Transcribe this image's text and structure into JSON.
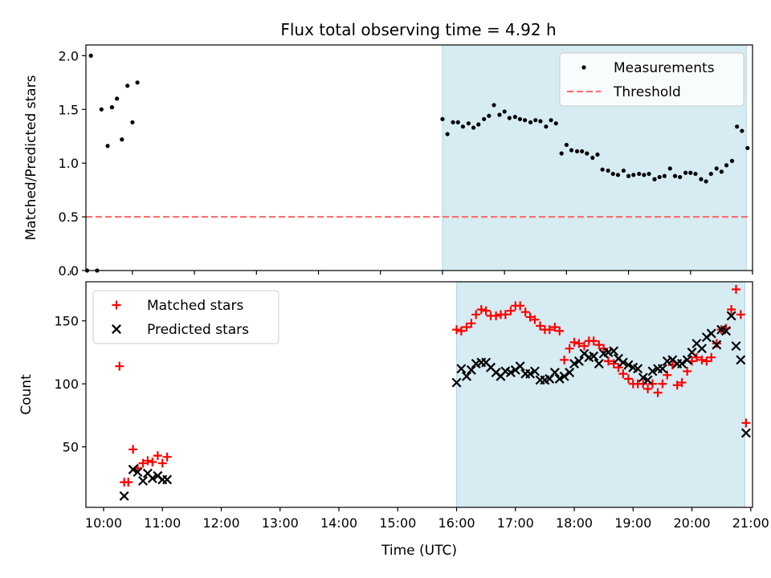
{
  "title": "Flux total observing time = 4.92 h",
  "chart_data": [
    {
      "type": "scatter",
      "ylabel": "Matched/Predicted stars",
      "xlim": [
        10.25,
        21.0
      ],
      "ylim": [
        0,
        2.1
      ],
      "yticks": [
        0.0,
        0.5,
        1.0,
        1.5,
        2.0
      ],
      "ytick_labels": [
        "0.0",
        "0.5",
        "1.0",
        "1.5",
        "2.0"
      ],
      "xtick_labels_visible": false,
      "shaded_region": [
        16.0,
        20.9
      ],
      "legend": {
        "position": "top-right",
        "entries": [
          "Measurements",
          "Threshold"
        ]
      },
      "series": [
        {
          "name": "Measurements",
          "color": "#000000",
          "marker": "dot",
          "points": [
            [
              10.27,
              0.0
            ],
            [
              10.33,
              2.0
            ],
            [
              10.43,
              0.0
            ],
            [
              10.5,
              1.5
            ],
            [
              10.6,
              1.16
            ],
            [
              10.67,
              1.52
            ],
            [
              10.75,
              1.6
            ],
            [
              10.83,
              1.22
            ],
            [
              10.92,
              1.72
            ],
            [
              11.0,
              1.38
            ],
            [
              11.08,
              1.75
            ],
            [
              16.0,
              1.41
            ],
            [
              16.08,
              1.27
            ],
            [
              16.17,
              1.38
            ],
            [
              16.25,
              1.38
            ],
            [
              16.33,
              1.34
            ],
            [
              16.42,
              1.37
            ],
            [
              16.5,
              1.33
            ],
            [
              16.58,
              1.36
            ],
            [
              16.67,
              1.41
            ],
            [
              16.75,
              1.44
            ],
            [
              16.83,
              1.54
            ],
            [
              16.92,
              1.45
            ],
            [
              17.0,
              1.48
            ],
            [
              17.08,
              1.42
            ],
            [
              17.17,
              1.43
            ],
            [
              17.25,
              1.41
            ],
            [
              17.33,
              1.4
            ],
            [
              17.42,
              1.38
            ],
            [
              17.5,
              1.4
            ],
            [
              17.58,
              1.39
            ],
            [
              17.67,
              1.34
            ],
            [
              17.75,
              1.4
            ],
            [
              17.83,
              1.37
            ],
            [
              17.92,
              1.09
            ],
            [
              18.0,
              1.17
            ],
            [
              18.08,
              1.12
            ],
            [
              18.17,
              1.11
            ],
            [
              18.25,
              1.11
            ],
            [
              18.33,
              1.09
            ],
            [
              18.42,
              1.05
            ],
            [
              18.5,
              1.08
            ],
            [
              18.58,
              0.94
            ],
            [
              18.67,
              0.93
            ],
            [
              18.75,
              0.9
            ],
            [
              18.83,
              0.89
            ],
            [
              18.92,
              0.93
            ],
            [
              19.0,
              0.88
            ],
            [
              19.08,
              0.89
            ],
            [
              19.17,
              0.9
            ],
            [
              19.25,
              0.89
            ],
            [
              19.33,
              0.9
            ],
            [
              19.42,
              0.85
            ],
            [
              19.5,
              0.87
            ],
            [
              19.58,
              0.88
            ],
            [
              19.67,
              0.95
            ],
            [
              19.75,
              0.88
            ],
            [
              19.83,
              0.87
            ],
            [
              19.92,
              0.91
            ],
            [
              20.0,
              0.91
            ],
            [
              20.08,
              0.9
            ],
            [
              20.17,
              0.85
            ],
            [
              20.25,
              0.83
            ],
            [
              20.33,
              0.9
            ],
            [
              20.42,
              0.95
            ],
            [
              20.5,
              0.92
            ],
            [
              20.58,
              0.98
            ],
            [
              20.67,
              1.02
            ],
            [
              20.75,
              1.34
            ],
            [
              20.83,
              1.3
            ],
            [
              20.92,
              1.14
            ]
          ]
        },
        {
          "name": "Threshold",
          "color": "#ff7070",
          "line": "dashed",
          "points": [
            [
              10.25,
              0.5
            ],
            [
              20.92,
              0.5
            ]
          ]
        }
      ]
    },
    {
      "type": "scatter",
      "xlabel": "Time (UTC)",
      "ylabel": "Count",
      "xlim": [
        9.7,
        21.03
      ],
      "ylim": [
        2,
        181
      ],
      "yticks": [
        50,
        100,
        150
      ],
      "ytick_labels": [
        "50",
        "100",
        "150"
      ],
      "xticks": [
        10,
        11,
        12,
        13,
        14,
        15,
        16,
        17,
        18,
        19,
        20,
        21
      ],
      "xtick_labels": [
        "10:00",
        "11:00",
        "12:00",
        "13:00",
        "14:00",
        "15:00",
        "16:00",
        "17:00",
        "18:00",
        "19:00",
        "20:00",
        "21:00"
      ],
      "shaded_region": [
        16.0,
        20.9
      ],
      "legend": {
        "position": "top-left",
        "entries": [
          "Matched stars",
          "Predicted stars"
        ]
      },
      "series": [
        {
          "name": "Matched stars",
          "color": "#ff0000",
          "marker": "plus",
          "points": [
            [
              10.27,
              114
            ],
            [
              10.35,
              22
            ],
            [
              10.42,
              22
            ],
            [
              10.5,
              48
            ],
            [
              10.58,
              33
            ],
            [
              10.67,
              37
            ],
            [
              10.75,
              39
            ],
            [
              10.83,
              38
            ],
            [
              10.92,
              43
            ],
            [
              11.0,
              37
            ],
            [
              11.08,
              42
            ],
            [
              16.0,
              143
            ],
            [
              16.08,
              142
            ],
            [
              16.17,
              145
            ],
            [
              16.25,
              148
            ],
            [
              16.33,
              155
            ],
            [
              16.42,
              159
            ],
            [
              16.5,
              158
            ],
            [
              16.58,
              154
            ],
            [
              16.67,
              154
            ],
            [
              16.75,
              155
            ],
            [
              16.83,
              155
            ],
            [
              16.92,
              158
            ],
            [
              17.0,
              162
            ],
            [
              17.08,
              162
            ],
            [
              17.17,
              157
            ],
            [
              17.25,
              153
            ],
            [
              17.33,
              151
            ],
            [
              17.42,
              146
            ],
            [
              17.5,
              143
            ],
            [
              17.58,
              143
            ],
            [
              17.67,
              145
            ],
            [
              17.75,
              142
            ],
            [
              17.83,
              119
            ],
            [
              17.92,
              128
            ],
            [
              18.0,
              133
            ],
            [
              18.08,
              132
            ],
            [
              18.17,
              130
            ],
            [
              18.25,
              134
            ],
            [
              18.33,
              134
            ],
            [
              18.42,
              131
            ],
            [
              18.5,
              128
            ],
            [
              18.58,
              118
            ],
            [
              18.67,
              116
            ],
            [
              18.75,
              113
            ],
            [
              18.83,
              108
            ],
            [
              18.92,
              104
            ],
            [
              19.0,
              100
            ],
            [
              19.08,
              100
            ],
            [
              19.17,
              100
            ],
            [
              19.25,
              96
            ],
            [
              19.33,
              100
            ],
            [
              19.42,
              93
            ],
            [
              19.5,
              100
            ],
            [
              19.58,
              107
            ],
            [
              19.67,
              115
            ],
            [
              19.75,
              99
            ],
            [
              19.83,
              101
            ],
            [
              19.92,
              110
            ],
            [
              20.0,
              118
            ],
            [
              20.08,
              121
            ],
            [
              20.17,
              119
            ],
            [
              20.25,
              118
            ],
            [
              20.33,
              121
            ],
            [
              20.42,
              132
            ],
            [
              20.5,
              143
            ],
            [
              20.58,
              144
            ],
            [
              20.67,
              159
            ],
            [
              20.75,
              175
            ],
            [
              20.83,
              155
            ],
            [
              20.92,
              69
            ]
          ]
        },
        {
          "name": "Predicted stars",
          "color": "#000000",
          "marker": "x",
          "points": [
            [
              10.35,
              11
            ],
            [
              10.5,
              32
            ],
            [
              10.58,
              30
            ],
            [
              10.67,
              23
            ],
            [
              10.75,
              29
            ],
            [
              10.83,
              25
            ],
            [
              10.92,
              27
            ],
            [
              11.0,
              24
            ],
            [
              11.08,
              24
            ],
            [
              16.0,
              101
            ],
            [
              16.08,
              112
            ],
            [
              16.17,
              106
            ],
            [
              16.25,
              111
            ],
            [
              16.33,
              116
            ],
            [
              16.42,
              117
            ],
            [
              16.5,
              117
            ],
            [
              16.58,
              113
            ],
            [
              16.67,
              109
            ],
            [
              16.75,
              106
            ],
            [
              16.83,
              110
            ],
            [
              16.92,
              109
            ],
            [
              17.0,
              111
            ],
            [
              17.08,
              114
            ],
            [
              17.17,
              108
            ],
            [
              17.25,
              108
            ],
            [
              17.33,
              110
            ],
            [
              17.42,
              103
            ],
            [
              17.5,
              103
            ],
            [
              17.58,
              104
            ],
            [
              17.67,
              109
            ],
            [
              17.75,
              104
            ],
            [
              17.83,
              106
            ],
            [
              17.92,
              109
            ],
            [
              18.0,
              116
            ],
            [
              18.08,
              118
            ],
            [
              18.17,
              124
            ],
            [
              18.25,
              121
            ],
            [
              18.33,
              122
            ],
            [
              18.42,
              116
            ],
            [
              18.5,
              124
            ],
            [
              18.58,
              125
            ],
            [
              18.67,
              126
            ],
            [
              18.75,
              120
            ],
            [
              18.83,
              117
            ],
            [
              18.92,
              115
            ],
            [
              19.0,
              113
            ],
            [
              19.08,
              112
            ],
            [
              19.17,
              105
            ],
            [
              19.25,
              103
            ],
            [
              19.33,
              110
            ],
            [
              19.42,
              112
            ],
            [
              19.5,
              112
            ],
            [
              19.58,
              118
            ],
            [
              19.67,
              119
            ],
            [
              19.75,
              116
            ],
            [
              19.83,
              116
            ],
            [
              19.92,
              119
            ],
            [
              20.0,
              125
            ],
            [
              20.08,
              132
            ],
            [
              20.17,
              128
            ],
            [
              20.25,
              137
            ],
            [
              20.33,
              140
            ],
            [
              20.42,
              131
            ],
            [
              20.5,
              143
            ],
            [
              20.58,
              142
            ],
            [
              20.67,
              154
            ],
            [
              20.75,
              130
            ],
            [
              20.83,
              119
            ],
            [
              20.92,
              61
            ]
          ]
        }
      ]
    }
  ]
}
